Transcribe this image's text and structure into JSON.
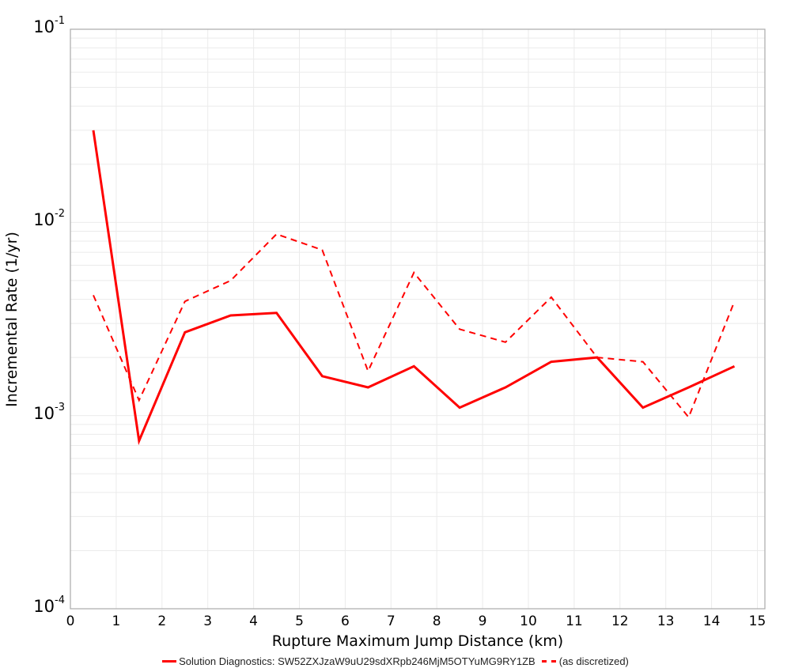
{
  "chart_data": {
    "type": "line",
    "title": "",
    "xlabel": "Rupture Maximum Jump Distance (km)",
    "ylabel": "Incremental Rate (1/yr)",
    "xlim": [
      0,
      15.2
    ],
    "ylim": [
      0.0001,
      0.1
    ],
    "yscale": "log",
    "grid": true,
    "legend_position": "bottom",
    "x_ticks": [
      "0",
      "1",
      "2",
      "3",
      "4",
      "5",
      "6",
      "7",
      "8",
      "9",
      "10",
      "11",
      "12",
      "13",
      "14",
      "15"
    ],
    "y_ticks": [
      {
        "base": "10",
        "exp": "-1",
        "value": 0.1
      },
      {
        "base": "10",
        "exp": "-2",
        "value": 0.01
      },
      {
        "base": "10",
        "exp": "-3",
        "value": 0.001
      },
      {
        "base": "10",
        "exp": "-4",
        "value": 0.0001
      }
    ],
    "x": [
      0.5,
      1.5,
      2.5,
      3.5,
      4.5,
      5.5,
      6.5,
      7.5,
      8.5,
      9.5,
      10.5,
      11.5,
      12.5,
      13.5,
      14.5
    ],
    "series": [
      {
        "name": "Solution Diagnostics: SW52ZXJzaW9uU29sdXRpb246MjM5OTYuMG9RY1ZB",
        "color": "#ff0000",
        "style": "solid",
        "values": [
          0.03,
          0.00074,
          0.0027,
          0.0033,
          0.0034,
          0.0016,
          0.0014,
          0.0018,
          0.0011,
          0.0014,
          0.0019,
          0.002,
          0.0011,
          0.0014,
          0.0018
        ]
      },
      {
        "name": "(as discretized)",
        "color": "#ff0000",
        "style": "dashed",
        "values": [
          0.0042,
          0.0012,
          0.0039,
          0.005,
          0.0087,
          0.0072,
          0.0017,
          0.0055,
          0.0028,
          0.0024,
          0.0041,
          0.002,
          0.0019,
          0.00098,
          0.0039
        ]
      }
    ]
  },
  "axes": {
    "xlabel": "Rupture Maximum Jump Distance (km)",
    "ylabel": "Incremental Rate (1/yr)"
  },
  "legend": {
    "items": [
      {
        "label": "Solution Diagnostics: SW52ZXJzaW9uU29sdXRpb246MjM5OTYuMG9RY1ZB",
        "style": "solid"
      },
      {
        "label": "(as discretized)",
        "style": "dashed"
      }
    ]
  }
}
